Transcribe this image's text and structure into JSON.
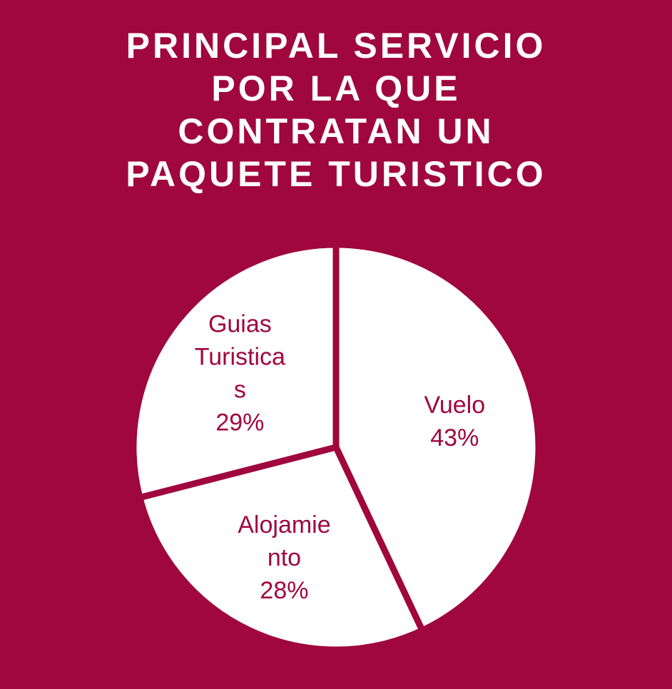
{
  "colors": {
    "background": "#a0073c",
    "slice_fill": "#ffffff",
    "slice_stroke": "#a0073c",
    "title_text": "#ffffff",
    "label_text": "#a0073c"
  },
  "chart_data": {
    "type": "pie",
    "title_lines": [
      "PRINCIPAL SERVICIO",
      "POR LA QUE",
      "CONTRATAN UN",
      "PAQUETE TURISTICO"
    ],
    "categories": [
      "Vuelo",
      "Alojamiento",
      "Guias Turisticas"
    ],
    "values": [
      43,
      28,
      29
    ],
    "slices": [
      {
        "label_lines": [
          "Vuelo"
        ],
        "percent_label": "43%"
      },
      {
        "label_lines": [
          "Alojamie",
          "nto"
        ],
        "percent_label": "28%"
      },
      {
        "label_lines": [
          "Guias",
          "Turistica",
          "s"
        ],
        "percent_label": "29%"
      }
    ],
    "start_angle_deg": 0,
    "direction": "clockwise",
    "legend": "none"
  }
}
